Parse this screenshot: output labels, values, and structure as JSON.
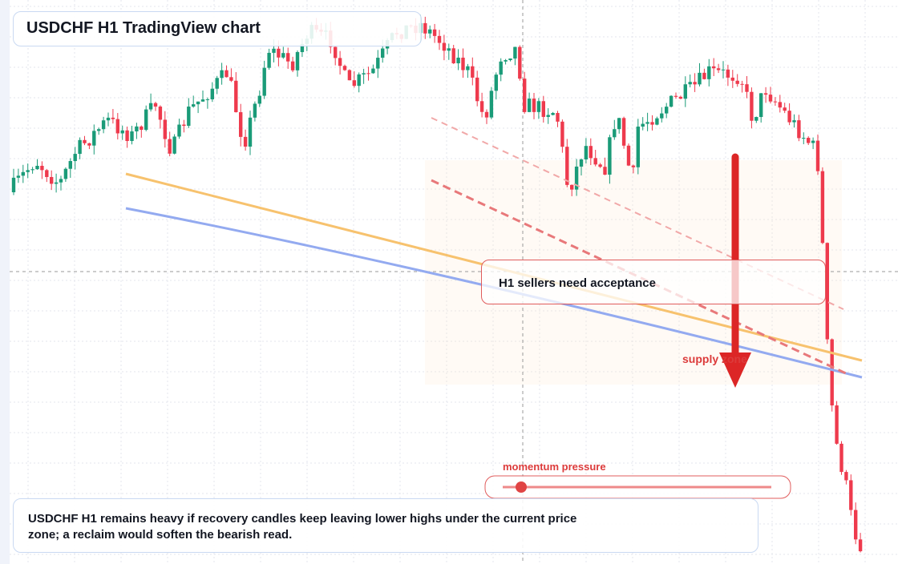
{
  "header": {
    "title": "USDCHF H1 TradingView chart"
  },
  "annotations": {
    "callout": "H1 sellers need acceptance",
    "zone_label": "supply zone",
    "momentum_label": "momentum pressure"
  },
  "note": {
    "text": "USDCHF H1 remains heavy if recovery candles keep leaving lower highs under the current price zone; a reclaim would soften the bearish read."
  }
}
